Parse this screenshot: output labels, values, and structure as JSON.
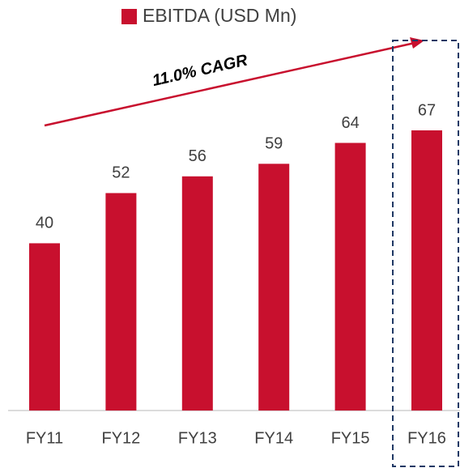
{
  "chart_data": {
    "type": "bar",
    "legend": "EBITDA (USD Mn)",
    "annotation": "11.0% CAGR",
    "categories": [
      "FY11",
      "FY12",
      "FY13",
      "FY14",
      "FY15",
      "FY16"
    ],
    "values": [
      40,
      52,
      56,
      59,
      64,
      67
    ],
    "color": "#c8102e"
  }
}
